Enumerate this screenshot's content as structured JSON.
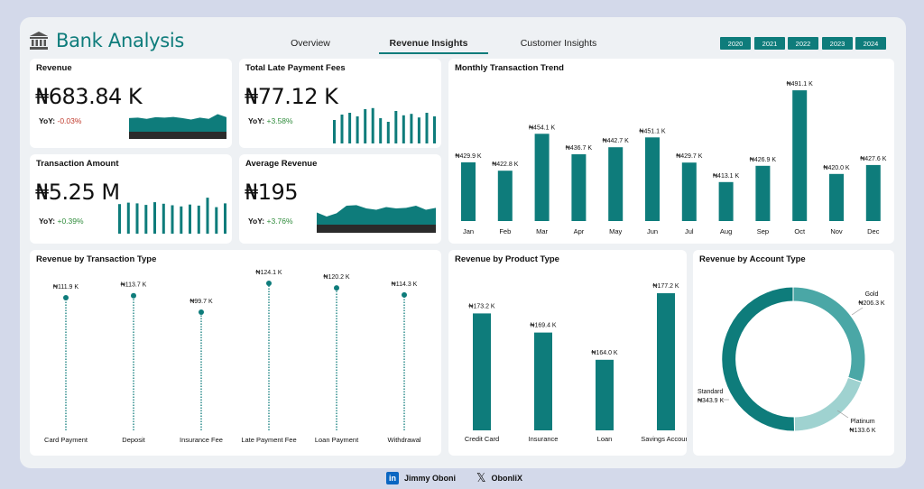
{
  "header": {
    "title": "Bank Analysis",
    "tabs": [
      "Overview",
      "Revenue Insights",
      "Customer Insights"
    ],
    "active_tab": "Revenue Insights",
    "years": [
      "2020",
      "2021",
      "2022",
      "2023",
      "2024"
    ]
  },
  "kpis": {
    "revenue": {
      "title": "Revenue",
      "value": "₦683.84 K",
      "yoy_label": "YoY:",
      "yoy_value": "-0.03%"
    },
    "late_fees": {
      "title": "Total Late Payment Fees",
      "value": "₦77.12 K",
      "yoy_label": "YoY:",
      "yoy_value": "+3.58%"
    },
    "transaction_amount": {
      "title": "Transaction Amount",
      "value": "₦5.25 M",
      "yoy_label": "YoY:",
      "yoy_value": "+0.39%"
    },
    "average_revenue": {
      "title": "Average Revenue",
      "value": "₦195",
      "yoy_label": "YoY:",
      "yoy_value": "+3.76%"
    }
  },
  "colors": {
    "accent": "#0e7c7b",
    "accent_light": "#4aa7a6",
    "accent_lighter": "#9fd2d0",
    "dark": "#2b2b2b",
    "negative": "#c0392b",
    "positive": "#2e8b3a"
  },
  "chart_data": [
    {
      "id": "monthly",
      "type": "bar",
      "title": "Monthly Transaction Trend",
      "categories": [
        "Jan",
        "Feb",
        "Mar",
        "Apr",
        "May",
        "Jun",
        "Jul",
        "Aug",
        "Sep",
        "Oct",
        "Nov",
        "Dec"
      ],
      "values": [
        429.9,
        422.8,
        454.1,
        436.7,
        442.7,
        451.1,
        429.7,
        413.1,
        426.9,
        491.1,
        420.0,
        427.6
      ],
      "labels": [
        "₦429.9 K",
        "₦422.8 K",
        "₦454.1 K",
        "₦436.7 K",
        "₦442.7 K",
        "₦451.1 K",
        "₦429.7 K",
        "₦413.1 K",
        "₦426.9 K",
        "₦491.1 K",
        "₦420.0 K",
        "₦427.6 K"
      ],
      "ylim": [
        380,
        495
      ]
    },
    {
      "id": "txn_type",
      "type": "lollipop",
      "title": "Revenue by Transaction Type",
      "categories": [
        "Card Payment",
        "Deposit",
        "Insurance Fee",
        "Late Payment Fee",
        "Loan Payment",
        "Withdrawal"
      ],
      "values": [
        111.9,
        113.7,
        99.7,
        124.1,
        120.2,
        114.3
      ],
      "labels": [
        "₦111.9 K",
        "₦113.7 K",
        "₦99.7 K",
        "₦124.1 K",
        "₦120.2 K",
        "₦114.3 K"
      ],
      "ylim": [
        0,
        124.1
      ]
    },
    {
      "id": "product_type",
      "type": "bar",
      "title": "Revenue by Product Type",
      "categories": [
        "Credit Card",
        "Insurance",
        "Loan",
        "Savings Account"
      ],
      "values": [
        173.2,
        169.4,
        164.0,
        177.2
      ],
      "labels": [
        "₦173.2 K",
        "₦169.4 K",
        "₦164.0 K",
        "₦177.2 K"
      ],
      "ylim": [
        150,
        177.2
      ]
    },
    {
      "id": "account_type",
      "type": "pie",
      "donut": true,
      "title": "Revenue by Account Type",
      "categories": [
        "Gold",
        "Platinum",
        "Standard"
      ],
      "values": [
        206.3,
        133.6,
        343.9
      ],
      "labels": [
        "₦206.3 K",
        "₦133.6 K",
        "₦343.9 K"
      ],
      "colors": [
        "#4aa7a6",
        "#9fd2d0",
        "#0e7c7b"
      ]
    }
  ],
  "sparklines": {
    "revenue_area": [
      0.58,
      0.6,
      0.55,
      0.62,
      0.6,
      0.63,
      0.58,
      0.52,
      0.6,
      0.55,
      0.75,
      0.62
    ],
    "late_fees_bars": [
      0.65,
      0.8,
      0.85,
      0.75,
      0.95,
      0.98,
      0.7,
      0.6,
      0.9,
      0.78,
      0.82,
      0.72,
      0.85,
      0.75
    ],
    "txn_bars": [
      0.78,
      0.82,
      0.8,
      0.76,
      0.83,
      0.79,
      0.75,
      0.72,
      0.77,
      0.74,
      0.95,
      0.7,
      0.8
    ],
    "avg_area": [
      0.45,
      0.3,
      0.42,
      0.7,
      0.72,
      0.6,
      0.55,
      0.65,
      0.6,
      0.62,
      0.7,
      0.55,
      0.62
    ]
  },
  "footer": {
    "linkedin_name": "Jimmy Oboni",
    "x_handle": "ObonIiX"
  }
}
